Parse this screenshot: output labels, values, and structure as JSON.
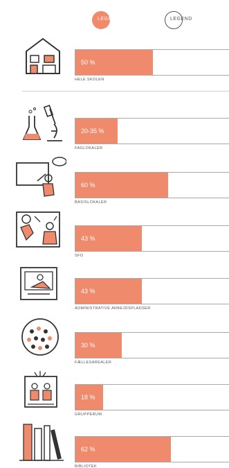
{
  "legend": [
    {
      "label": "LEGEND",
      "color": "#f08a6a",
      "filled": true
    },
    {
      "label": "LEGEND",
      "color": "#555555",
      "filled": false
    }
  ],
  "colors": {
    "bar": "#ef8a6c",
    "track_border": "#a9a9a9",
    "divider": "#cfcfcf"
  },
  "chart_data": {
    "type": "bar",
    "orientation": "horizontal",
    "title": "",
    "xlabel": "",
    "ylabel": "",
    "xlim": [
      0,
      100
    ],
    "grid": false,
    "legend_position": "top",
    "categories": [
      "HELE SKOLEN",
      "FAGLOKALER",
      "BASISLOKALER",
      "SFO",
      "ADMINISTRATIVE ARBEJDSPLADSER",
      "FÆLLESAREALER",
      "GRUPPERUM",
      "BIBLIOTEK"
    ],
    "values": [
      50,
      27.5,
      60,
      43,
      43,
      30,
      18,
      62
    ],
    "value_labels": [
      "50 %",
      "20-35 %",
      "60 %",
      "43 %",
      "43 %",
      "30 %",
      "18 %",
      "62 %"
    ],
    "icons": [
      "school-building-icon",
      "science-lab-icon",
      "classroom-teacher-icon",
      "after-school-play-icon",
      "office-workspace-icon",
      "crowd-common-area-icon",
      "group-room-icon",
      "library-books-icon"
    ]
  }
}
